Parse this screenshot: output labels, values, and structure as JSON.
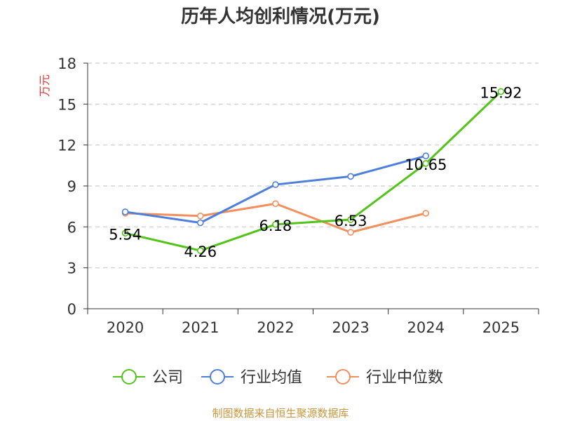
{
  "chart_data": {
    "type": "line",
    "title": "历年人均创利情况(万元)",
    "ylabel": "万元",
    "xlabel": "",
    "categories": [
      "2020",
      "2021",
      "2022",
      "2023",
      "2024",
      "2025"
    ],
    "ylim": [
      0,
      18
    ],
    "yticks": [
      0,
      3,
      6,
      9,
      12,
      15,
      18
    ],
    "grid": "horizontal-dashed",
    "legend_position": "bottom",
    "series": [
      {
        "name": "公司",
        "color": "#52c41a",
        "values": [
          5.54,
          4.26,
          6.18,
          6.53,
          10.65,
          15.92
        ],
        "labels": [
          "5.54",
          "4.26",
          "6.18",
          "6.53",
          "10.65",
          "15.92"
        ]
      },
      {
        "name": "行业均值",
        "color": "#4e7fdc",
        "values": [
          7.1,
          6.3,
          9.1,
          9.7,
          11.2,
          null
        ]
      },
      {
        "name": "行业中位数",
        "color": "#f28f5c",
        "values": [
          7.0,
          6.8,
          7.7,
          5.6,
          7.0,
          null
        ]
      }
    ]
  },
  "source_text": "制图数据来自恒生聚源数据库",
  "colors": {
    "ylabel": "#e53935",
    "source": "#c8963e",
    "axis": "#333333",
    "grid": "#cccccc"
  }
}
